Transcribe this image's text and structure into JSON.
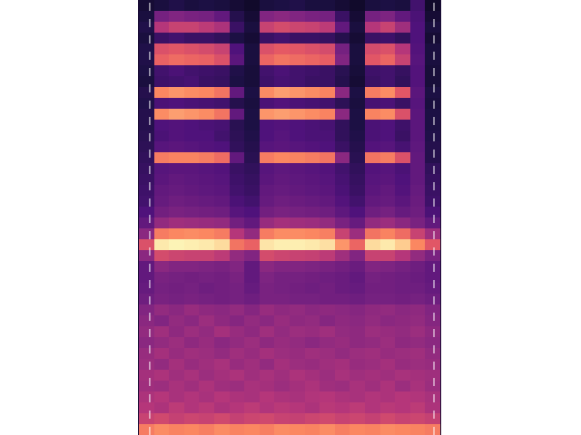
{
  "chart_data": {
    "type": "heatmap",
    "tick_labels": false,
    "grid": false,
    "xlim": [
      -0.5,
      19.5
    ],
    "ylim": [
      39.5,
      -0.5
    ],
    "zlim": [
      0,
      1
    ],
    "z": [
      [
        0.1,
        0.12,
        0.14,
        0.12,
        0.13,
        0.12,
        0.1,
        0.08,
        0.12,
        0.13,
        0.14,
        0.12,
        0.12,
        0.1,
        0.08,
        0.12,
        0.13,
        0.12,
        0.22,
        0.08
      ],
      [
        0.12,
        0.35,
        0.38,
        0.36,
        0.35,
        0.3,
        0.15,
        0.1,
        0.38,
        0.4,
        0.38,
        0.36,
        0.35,
        0.2,
        0.1,
        0.35,
        0.37,
        0.3,
        0.24,
        0.1
      ],
      [
        0.14,
        0.5,
        0.55,
        0.55,
        0.52,
        0.48,
        0.2,
        0.12,
        0.55,
        0.58,
        0.56,
        0.55,
        0.52,
        0.3,
        0.12,
        0.5,
        0.55,
        0.45,
        0.25,
        0.12
      ],
      [
        0.12,
        0.2,
        0.22,
        0.2,
        0.2,
        0.18,
        0.13,
        0.1,
        0.2,
        0.22,
        0.2,
        0.2,
        0.19,
        0.15,
        0.1,
        0.2,
        0.21,
        0.18,
        0.25,
        0.1
      ],
      [
        0.14,
        0.6,
        0.62,
        0.6,
        0.58,
        0.55,
        0.25,
        0.12,
        0.6,
        0.63,
        0.62,
        0.6,
        0.58,
        0.35,
        0.12,
        0.58,
        0.6,
        0.5,
        0.26,
        0.12
      ],
      [
        0.14,
        0.65,
        0.68,
        0.66,
        0.65,
        0.6,
        0.28,
        0.12,
        0.66,
        0.7,
        0.68,
        0.66,
        0.64,
        0.38,
        0.12,
        0.62,
        0.66,
        0.55,
        0.27,
        0.12
      ],
      [
        0.13,
        0.22,
        0.24,
        0.22,
        0.21,
        0.2,
        0.14,
        0.11,
        0.22,
        0.24,
        0.22,
        0.21,
        0.2,
        0.16,
        0.11,
        0.21,
        0.22,
        0.19,
        0.26,
        0.11
      ],
      [
        0.12,
        0.21,
        0.22,
        0.23,
        0.2,
        0.19,
        0.13,
        0.11,
        0.21,
        0.23,
        0.22,
        0.2,
        0.2,
        0.15,
        0.1,
        0.2,
        0.22,
        0.18,
        0.26,
        0.11
      ],
      [
        0.15,
        0.75,
        0.78,
        0.76,
        0.75,
        0.7,
        0.3,
        0.13,
        0.76,
        0.8,
        0.78,
        0.76,
        0.74,
        0.4,
        0.13,
        0.72,
        0.76,
        0.62,
        0.28,
        0.13
      ],
      [
        0.14,
        0.24,
        0.25,
        0.24,
        0.23,
        0.22,
        0.15,
        0.12,
        0.24,
        0.26,
        0.24,
        0.23,
        0.22,
        0.17,
        0.12,
        0.23,
        0.24,
        0.2,
        0.27,
        0.12
      ],
      [
        0.15,
        0.76,
        0.8,
        0.78,
        0.76,
        0.7,
        0.3,
        0.13,
        0.78,
        0.8,
        0.78,
        0.76,
        0.74,
        0.4,
        0.13,
        0.74,
        0.76,
        0.6,
        0.28,
        0.13
      ],
      [
        0.15,
        0.25,
        0.26,
        0.25,
        0.24,
        0.23,
        0.16,
        0.13,
        0.25,
        0.26,
        0.25,
        0.24,
        0.23,
        0.18,
        0.13,
        0.24,
        0.25,
        0.21,
        0.28,
        0.13
      ],
      [
        0.16,
        0.24,
        0.26,
        0.25,
        0.25,
        0.22,
        0.17,
        0.14,
        0.25,
        0.27,
        0.25,
        0.24,
        0.24,
        0.18,
        0.14,
        0.24,
        0.25,
        0.2,
        0.28,
        0.14
      ],
      [
        0.17,
        0.27,
        0.28,
        0.27,
        0.26,
        0.25,
        0.18,
        0.15,
        0.27,
        0.28,
        0.27,
        0.26,
        0.25,
        0.2,
        0.15,
        0.26,
        0.27,
        0.23,
        0.29,
        0.15
      ],
      [
        0.18,
        0.72,
        0.74,
        0.74,
        0.72,
        0.68,
        0.3,
        0.16,
        0.72,
        0.75,
        0.74,
        0.72,
        0.7,
        0.4,
        0.16,
        0.7,
        0.72,
        0.6,
        0.3,
        0.15
      ],
      [
        0.19,
        0.27,
        0.28,
        0.28,
        0.27,
        0.26,
        0.2,
        0.18,
        0.27,
        0.29,
        0.28,
        0.27,
        0.26,
        0.22,
        0.18,
        0.26,
        0.27,
        0.24,
        0.3,
        0.18
      ],
      [
        0.2,
        0.28,
        0.3,
        0.29,
        0.28,
        0.27,
        0.21,
        0.19,
        0.28,
        0.3,
        0.29,
        0.28,
        0.27,
        0.23,
        0.19,
        0.27,
        0.28,
        0.25,
        0.3,
        0.19
      ],
      [
        0.21,
        0.3,
        0.31,
        0.3,
        0.29,
        0.28,
        0.22,
        0.2,
        0.3,
        0.31,
        0.3,
        0.29,
        0.28,
        0.24,
        0.2,
        0.28,
        0.3,
        0.26,
        0.31,
        0.2
      ],
      [
        0.22,
        0.31,
        0.33,
        0.32,
        0.31,
        0.3,
        0.24,
        0.22,
        0.31,
        0.33,
        0.32,
        0.31,
        0.3,
        0.26,
        0.22,
        0.3,
        0.31,
        0.28,
        0.32,
        0.21
      ],
      [
        0.25,
        0.34,
        0.36,
        0.35,
        0.34,
        0.33,
        0.27,
        0.25,
        0.34,
        0.36,
        0.35,
        0.34,
        0.33,
        0.29,
        0.25,
        0.33,
        0.35,
        0.31,
        0.33,
        0.24
      ],
      [
        0.3,
        0.42,
        0.45,
        0.44,
        0.43,
        0.42,
        0.34,
        0.3,
        0.43,
        0.46,
        0.45,
        0.44,
        0.42,
        0.36,
        0.31,
        0.42,
        0.44,
        0.4,
        0.36,
        0.3
      ],
      [
        0.4,
        0.72,
        0.75,
        0.76,
        0.75,
        0.72,
        0.5,
        0.42,
        0.72,
        0.76,
        0.76,
        0.75,
        0.73,
        0.55,
        0.44,
        0.7,
        0.74,
        0.68,
        0.55,
        0.45
      ],
      [
        0.6,
        0.96,
        0.98,
        0.97,
        0.96,
        0.93,
        0.7,
        0.65,
        0.95,
        0.97,
        0.97,
        0.96,
        0.94,
        0.78,
        0.66,
        0.93,
        0.96,
        0.9,
        0.75,
        0.62
      ],
      [
        0.4,
        0.58,
        0.56,
        0.55,
        0.55,
        0.52,
        0.42,
        0.38,
        0.58,
        0.56,
        0.55,
        0.54,
        0.52,
        0.45,
        0.38,
        0.55,
        0.55,
        0.5,
        0.42,
        0.36
      ],
      [
        0.3,
        0.4,
        0.38,
        0.38,
        0.37,
        0.36,
        0.38,
        0.3,
        0.4,
        0.38,
        0.38,
        0.37,
        0.36,
        0.34,
        0.32,
        0.38,
        0.37,
        0.35,
        0.33,
        0.3
      ],
      [
        0.3,
        0.36,
        0.35,
        0.34,
        0.35,
        0.34,
        0.36,
        0.3,
        0.37,
        0.35,
        0.35,
        0.34,
        0.33,
        0.32,
        0.3,
        0.35,
        0.34,
        0.33,
        0.32,
        0.3
      ],
      [
        0.31,
        0.35,
        0.34,
        0.35,
        0.33,
        0.34,
        0.35,
        0.31,
        0.36,
        0.35,
        0.34,
        0.33,
        0.34,
        0.32,
        0.31,
        0.34,
        0.34,
        0.33,
        0.33,
        0.31
      ],
      [
        0.33,
        0.36,
        0.35,
        0.36,
        0.35,
        0.34,
        0.35,
        0.33,
        0.36,
        0.36,
        0.35,
        0.35,
        0.34,
        0.34,
        0.33,
        0.35,
        0.35,
        0.34,
        0.35,
        0.33
      ],
      [
        0.38,
        0.42,
        0.4,
        0.43,
        0.41,
        0.4,
        0.42,
        0.39,
        0.43,
        0.41,
        0.42,
        0.4,
        0.41,
        0.4,
        0.39,
        0.41,
        0.42,
        0.4,
        0.41,
        0.38
      ],
      [
        0.4,
        0.38,
        0.42,
        0.4,
        0.44,
        0.41,
        0.39,
        0.42,
        0.4,
        0.43,
        0.41,
        0.42,
        0.39,
        0.41,
        0.4,
        0.42,
        0.4,
        0.41,
        0.42,
        0.39
      ],
      [
        0.42,
        0.45,
        0.41,
        0.44,
        0.42,
        0.46,
        0.43,
        0.41,
        0.45,
        0.42,
        0.44,
        0.43,
        0.45,
        0.42,
        0.41,
        0.44,
        0.43,
        0.42,
        0.44,
        0.41
      ],
      [
        0.4,
        0.42,
        0.44,
        0.41,
        0.43,
        0.4,
        0.42,
        0.44,
        0.41,
        0.43,
        0.42,
        0.4,
        0.42,
        0.43,
        0.41,
        0.42,
        0.44,
        0.41,
        0.42,
        0.4
      ],
      [
        0.43,
        0.46,
        0.43,
        0.45,
        0.44,
        0.42,
        0.45,
        0.43,
        0.46,
        0.44,
        0.43,
        0.45,
        0.44,
        0.42,
        0.44,
        0.45,
        0.43,
        0.44,
        0.45,
        0.42
      ],
      [
        0.44,
        0.42,
        0.46,
        0.43,
        0.45,
        0.47,
        0.43,
        0.45,
        0.42,
        0.46,
        0.44,
        0.43,
        0.45,
        0.46,
        0.43,
        0.44,
        0.46,
        0.43,
        0.44,
        0.43
      ],
      [
        0.46,
        0.48,
        0.45,
        0.47,
        0.44,
        0.46,
        0.48,
        0.45,
        0.47,
        0.45,
        0.48,
        0.46,
        0.44,
        0.47,
        0.45,
        0.46,
        0.45,
        0.47,
        0.46,
        0.45
      ],
      [
        0.45,
        0.44,
        0.47,
        0.45,
        0.48,
        0.45,
        0.44,
        0.47,
        0.46,
        0.44,
        0.46,
        0.48,
        0.45,
        0.44,
        0.47,
        0.45,
        0.48,
        0.44,
        0.47,
        0.44
      ],
      [
        0.48,
        0.5,
        0.47,
        0.49,
        0.47,
        0.5,
        0.48,
        0.47,
        0.5,
        0.48,
        0.47,
        0.49,
        0.5,
        0.48,
        0.47,
        0.49,
        0.48,
        0.5,
        0.49,
        0.47
      ],
      [
        0.5,
        0.48,
        0.52,
        0.49,
        0.51,
        0.48,
        0.5,
        0.52,
        0.49,
        0.51,
        0.5,
        0.48,
        0.51,
        0.5,
        0.52,
        0.49,
        0.51,
        0.5,
        0.52,
        0.48
      ],
      [
        0.55,
        0.57,
        0.54,
        0.56,
        0.55,
        0.57,
        0.54,
        0.56,
        0.57,
        0.55,
        0.54,
        0.56,
        0.57,
        0.55,
        0.56,
        0.54,
        0.57,
        0.55,
        0.56,
        0.54
      ],
      [
        0.72,
        0.76,
        0.74,
        0.75,
        0.73,
        0.76,
        0.74,
        0.75,
        0.73,
        0.76,
        0.75,
        0.74,
        0.76,
        0.73,
        0.75,
        0.74,
        0.76,
        0.75,
        0.74,
        0.72
      ]
    ]
  }
}
